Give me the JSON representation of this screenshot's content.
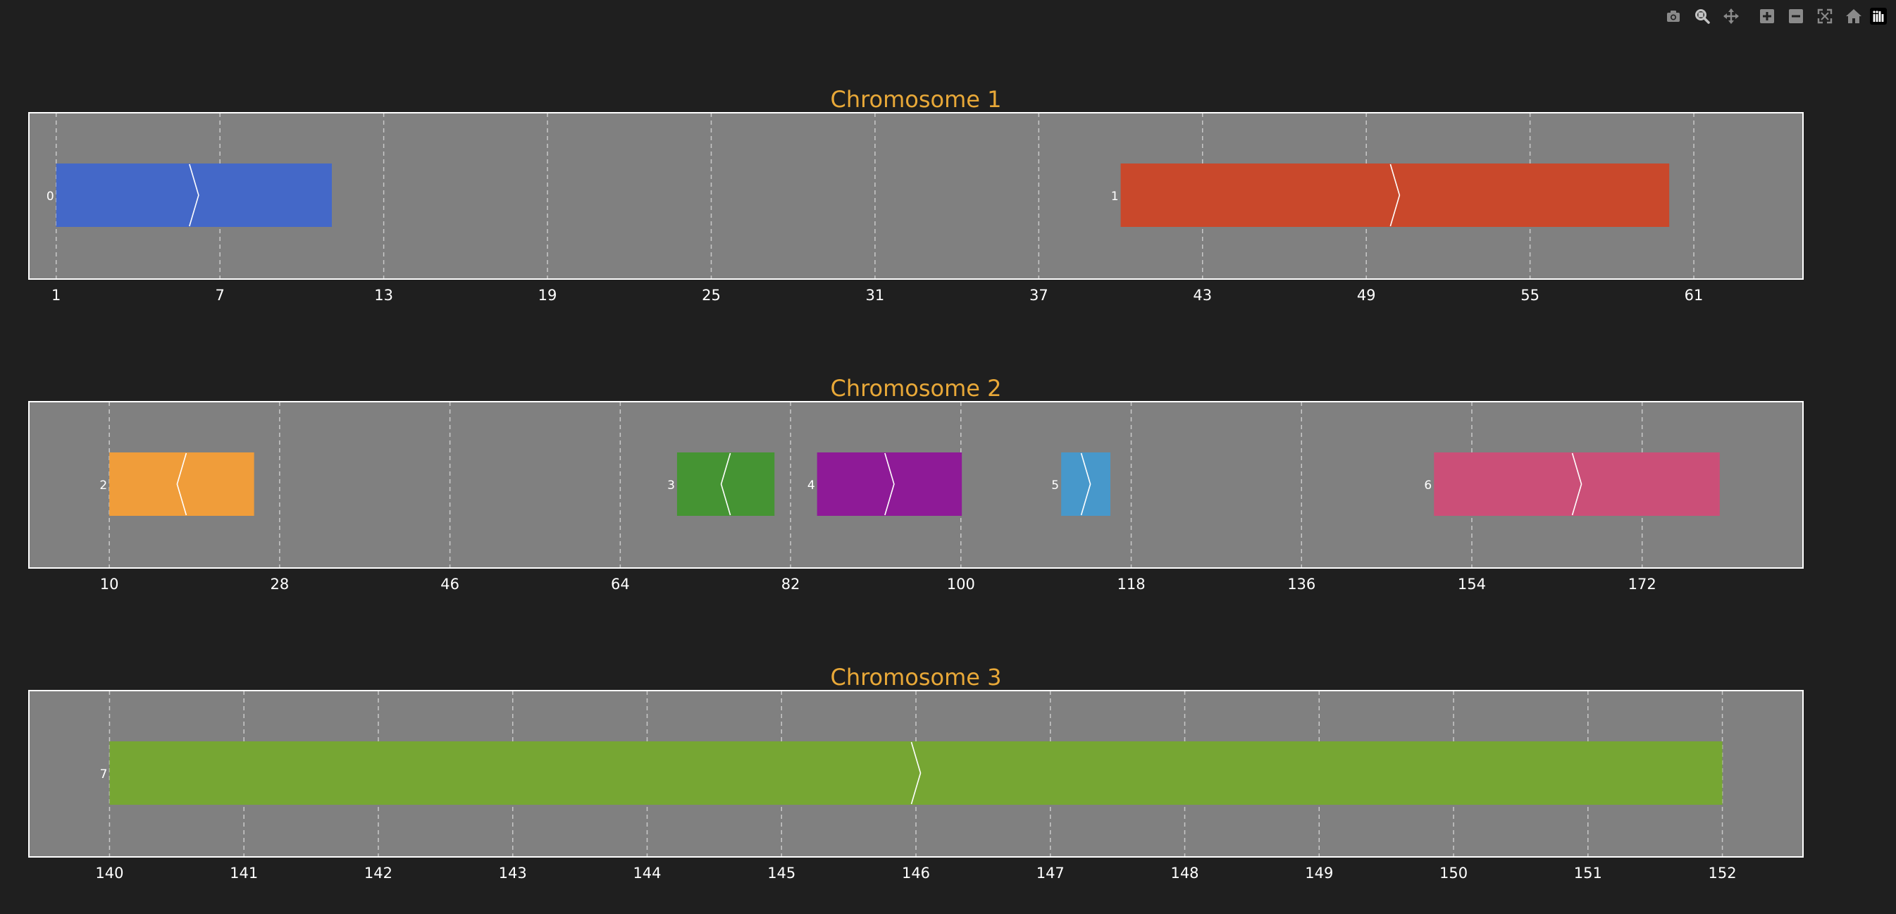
{
  "modebar": {
    "buttons": [
      {
        "name": "camera-icon",
        "active": false
      },
      {
        "name": "zoom-icon",
        "active": true
      },
      {
        "name": "pan-icon",
        "active": false
      },
      {
        "name": "zoom-in-icon",
        "active": false
      },
      {
        "name": "zoom-out-icon",
        "active": false
      },
      {
        "name": "autoscale-icon",
        "active": false
      },
      {
        "name": "home-icon",
        "active": false
      },
      {
        "name": "plotly-logo-icon",
        "active": false
      }
    ]
  },
  "colors": {
    "background": "#1f1f1f",
    "plot_bg": "#808080",
    "title": "#e8a838",
    "tick_text": "#ffffff",
    "grid": "#c8c8c8",
    "frame": "#ffffff",
    "modebar_icon": "#8a8a8a",
    "modebar_active": "#c4c4c4"
  },
  "chart_data": [
    {
      "type": "bar",
      "title": "Chromosome 1",
      "xlim": [
        0,
        65
      ],
      "ticks": [
        1,
        7,
        13,
        19,
        25,
        31,
        37,
        43,
        49,
        55,
        61
      ],
      "grid": true,
      "genes": [
        {
          "label": "0",
          "start": 1,
          "end": 11.1,
          "strand": "+",
          "color": "#4468c8"
        },
        {
          "label": "1",
          "start": 40,
          "end": 60.1,
          "strand": "+",
          "color": "#c9482b"
        }
      ]
    },
    {
      "type": "bar",
      "title": "Chromosome 2",
      "xlim": [
        1.5,
        189
      ],
      "ticks": [
        10,
        28,
        46,
        64,
        82,
        100,
        118,
        136,
        154,
        172
      ],
      "grid": true,
      "genes": [
        {
          "label": "2",
          "start": 10,
          "end": 25.3,
          "strand": "-",
          "color": "#f09d3a"
        },
        {
          "label": "3",
          "start": 70,
          "end": 80.3,
          "strand": "-",
          "color": "#459433"
        },
        {
          "label": "4",
          "start": 84.8,
          "end": 100.1,
          "strand": "+",
          "color": "#8e1a97"
        },
        {
          "label": "5",
          "start": 110.6,
          "end": 115.8,
          "strand": "+",
          "color": "#4798cb"
        },
        {
          "label": "6",
          "start": 150,
          "end": 180.2,
          "strand": "+",
          "color": "#cb4f78"
        }
      ]
    },
    {
      "type": "bar",
      "title": "Chromosome 3",
      "xlim": [
        139.4,
        152.6
      ],
      "ticks": [
        140,
        141,
        142,
        143,
        144,
        145,
        146,
        147,
        148,
        149,
        150,
        151,
        152
      ],
      "grid": true,
      "genes": [
        {
          "label": "7",
          "start": 140,
          "end": 152,
          "strand": "+",
          "color": "#76a633"
        }
      ]
    }
  ]
}
